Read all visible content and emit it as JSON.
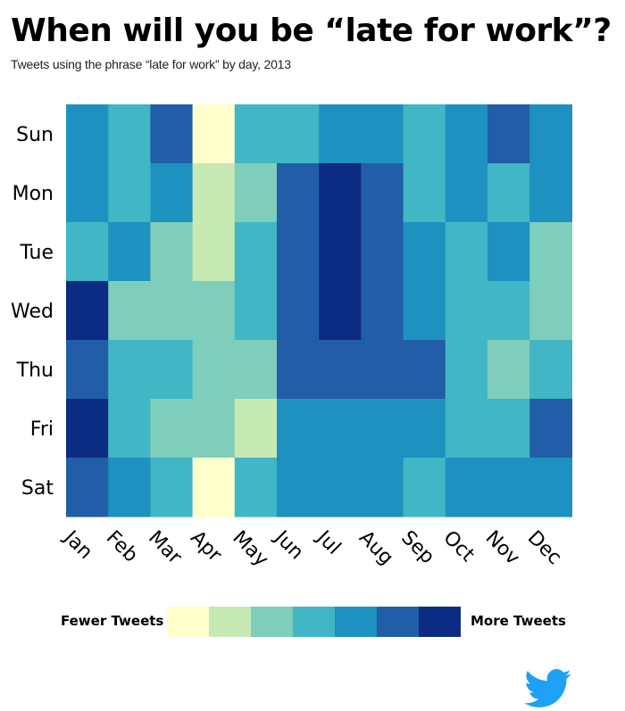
{
  "title": "When will you be “late for work”?",
  "subtitle": "Tweets using the phrase “late for work” by day, 2013",
  "legend": {
    "low_label": "Fewer Tweets",
    "high_label": "More Tweets",
    "colors": [
      "#ffffcc",
      "#c7e9b4",
      "#7fcdbb",
      "#41b6c4",
      "#1d91c0",
      "#225ea8",
      "#0c2c84"
    ]
  },
  "logo": {
    "icon": "twitter-bird-icon",
    "color": "#1da1f2"
  },
  "chart_data": {
    "type": "heatmap",
    "title": "When will you be “late for work”?",
    "subtitle": "Tweets using the phrase “late for work” by day, 2013",
    "x": [
      "Jan",
      "Feb",
      "Mar",
      "Apr",
      "May",
      "Jun",
      "Jul",
      "Aug",
      "Sep",
      "Oct",
      "Nov",
      "Dec"
    ],
    "y": [
      "Sun",
      "Mon",
      "Tue",
      "Wed",
      "Thu",
      "Fri",
      "Sat"
    ],
    "scale": "ordinal level 0 (fewer tweets) to 6 (more tweets)",
    "values": [
      [
        4,
        3,
        5,
        0,
        3,
        3,
        4,
        4,
        3,
        4,
        5,
        4
      ],
      [
        4,
        3,
        4,
        1,
        2,
        5,
        6,
        5,
        3,
        4,
        3,
        4
      ],
      [
        3,
        4,
        2,
        1,
        3,
        5,
        6,
        5,
        4,
        3,
        4,
        2
      ],
      [
        6,
        2,
        2,
        2,
        3,
        5,
        6,
        5,
        4,
        3,
        3,
        2
      ],
      [
        5,
        3,
        3,
        2,
        2,
        5,
        5,
        5,
        5,
        3,
        2,
        3
      ],
      [
        6,
        3,
        2,
        2,
        1,
        4,
        4,
        4,
        4,
        3,
        3,
        5
      ],
      [
        5,
        4,
        3,
        0,
        3,
        4,
        4,
        4,
        3,
        4,
        4,
        4
      ]
    ],
    "colors": [
      "#ffffcc",
      "#c7e9b4",
      "#7fcdbb",
      "#41b6c4",
      "#1d91c0",
      "#225ea8",
      "#0c2c84"
    ],
    "legend_position": "bottom"
  }
}
